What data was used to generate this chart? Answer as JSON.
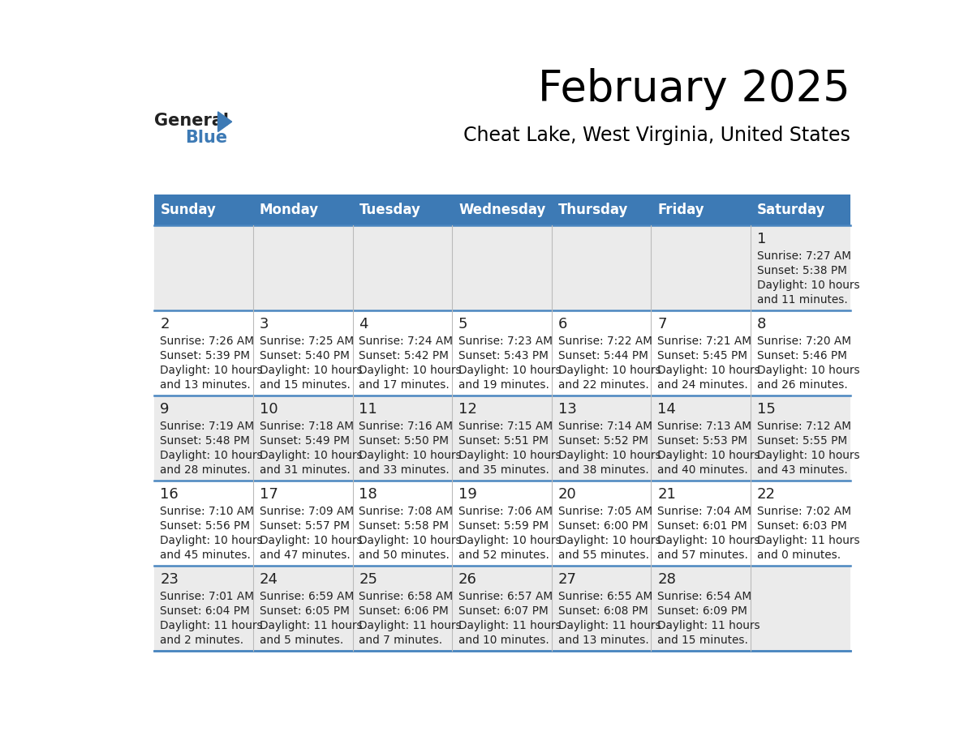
{
  "title": "February 2025",
  "subtitle": "Cheat Lake, West Virginia, United States",
  "header_bg": "#3d7ab5",
  "header_text": "#ffffff",
  "day_names": [
    "Sunday",
    "Monday",
    "Tuesday",
    "Wednesday",
    "Thursday",
    "Friday",
    "Saturday"
  ],
  "row1_bg": "#ebebeb",
  "row2_bg": "#ffffff",
  "cell_border": "#4a86c0",
  "day_num_color": "#222222",
  "info_text_color": "#222222",
  "logo_general_color": "#222222",
  "logo_blue_color": "#3d7ab5",
  "days": [
    {
      "date": 1,
      "col": 6,
      "row": 0,
      "sunrise": "7:27 AM",
      "sunset": "5:38 PM",
      "daylight": "10 hours",
      "daylight2": "and 11 minutes."
    },
    {
      "date": 2,
      "col": 0,
      "row": 1,
      "sunrise": "7:26 AM",
      "sunset": "5:39 PM",
      "daylight": "10 hours",
      "daylight2": "and 13 minutes."
    },
    {
      "date": 3,
      "col": 1,
      "row": 1,
      "sunrise": "7:25 AM",
      "sunset": "5:40 PM",
      "daylight": "10 hours",
      "daylight2": "and 15 minutes."
    },
    {
      "date": 4,
      "col": 2,
      "row": 1,
      "sunrise": "7:24 AM",
      "sunset": "5:42 PM",
      "daylight": "10 hours",
      "daylight2": "and 17 minutes."
    },
    {
      "date": 5,
      "col": 3,
      "row": 1,
      "sunrise": "7:23 AM",
      "sunset": "5:43 PM",
      "daylight": "10 hours",
      "daylight2": "and 19 minutes."
    },
    {
      "date": 6,
      "col": 4,
      "row": 1,
      "sunrise": "7:22 AM",
      "sunset": "5:44 PM",
      "daylight": "10 hours",
      "daylight2": "and 22 minutes."
    },
    {
      "date": 7,
      "col": 5,
      "row": 1,
      "sunrise": "7:21 AM",
      "sunset": "5:45 PM",
      "daylight": "10 hours",
      "daylight2": "and 24 minutes."
    },
    {
      "date": 8,
      "col": 6,
      "row": 1,
      "sunrise": "7:20 AM",
      "sunset": "5:46 PM",
      "daylight": "10 hours",
      "daylight2": "and 26 minutes."
    },
    {
      "date": 9,
      "col": 0,
      "row": 2,
      "sunrise": "7:19 AM",
      "sunset": "5:48 PM",
      "daylight": "10 hours",
      "daylight2": "and 28 minutes."
    },
    {
      "date": 10,
      "col": 1,
      "row": 2,
      "sunrise": "7:18 AM",
      "sunset": "5:49 PM",
      "daylight": "10 hours",
      "daylight2": "and 31 minutes."
    },
    {
      "date": 11,
      "col": 2,
      "row": 2,
      "sunrise": "7:16 AM",
      "sunset": "5:50 PM",
      "daylight": "10 hours",
      "daylight2": "and 33 minutes."
    },
    {
      "date": 12,
      "col": 3,
      "row": 2,
      "sunrise": "7:15 AM",
      "sunset": "5:51 PM",
      "daylight": "10 hours",
      "daylight2": "and 35 minutes."
    },
    {
      "date": 13,
      "col": 4,
      "row": 2,
      "sunrise": "7:14 AM",
      "sunset": "5:52 PM",
      "daylight": "10 hours",
      "daylight2": "and 38 minutes."
    },
    {
      "date": 14,
      "col": 5,
      "row": 2,
      "sunrise": "7:13 AM",
      "sunset": "5:53 PM",
      "daylight": "10 hours",
      "daylight2": "and 40 minutes."
    },
    {
      "date": 15,
      "col": 6,
      "row": 2,
      "sunrise": "7:12 AM",
      "sunset": "5:55 PM",
      "daylight": "10 hours",
      "daylight2": "and 43 minutes."
    },
    {
      "date": 16,
      "col": 0,
      "row": 3,
      "sunrise": "7:10 AM",
      "sunset": "5:56 PM",
      "daylight": "10 hours",
      "daylight2": "and 45 minutes."
    },
    {
      "date": 17,
      "col": 1,
      "row": 3,
      "sunrise": "7:09 AM",
      "sunset": "5:57 PM",
      "daylight": "10 hours",
      "daylight2": "and 47 minutes."
    },
    {
      "date": 18,
      "col": 2,
      "row": 3,
      "sunrise": "7:08 AM",
      "sunset": "5:58 PM",
      "daylight": "10 hours",
      "daylight2": "and 50 minutes."
    },
    {
      "date": 19,
      "col": 3,
      "row": 3,
      "sunrise": "7:06 AM",
      "sunset": "5:59 PM",
      "daylight": "10 hours",
      "daylight2": "and 52 minutes."
    },
    {
      "date": 20,
      "col": 4,
      "row": 3,
      "sunrise": "7:05 AM",
      "sunset": "6:00 PM",
      "daylight": "10 hours",
      "daylight2": "and 55 minutes."
    },
    {
      "date": 21,
      "col": 5,
      "row": 3,
      "sunrise": "7:04 AM",
      "sunset": "6:01 PM",
      "daylight": "10 hours",
      "daylight2": "and 57 minutes."
    },
    {
      "date": 22,
      "col": 6,
      "row": 3,
      "sunrise": "7:02 AM",
      "sunset": "6:03 PM",
      "daylight": "11 hours",
      "daylight2": "and 0 minutes."
    },
    {
      "date": 23,
      "col": 0,
      "row": 4,
      "sunrise": "7:01 AM",
      "sunset": "6:04 PM",
      "daylight": "11 hours",
      "daylight2": "and 2 minutes."
    },
    {
      "date": 24,
      "col": 1,
      "row": 4,
      "sunrise": "6:59 AM",
      "sunset": "6:05 PM",
      "daylight": "11 hours",
      "daylight2": "and 5 minutes."
    },
    {
      "date": 25,
      "col": 2,
      "row": 4,
      "sunrise": "6:58 AM",
      "sunset": "6:06 PM",
      "daylight": "11 hours",
      "daylight2": "and 7 minutes."
    },
    {
      "date": 26,
      "col": 3,
      "row": 4,
      "sunrise": "6:57 AM",
      "sunset": "6:07 PM",
      "daylight": "11 hours",
      "daylight2": "and 10 minutes."
    },
    {
      "date": 27,
      "col": 4,
      "row": 4,
      "sunrise": "6:55 AM",
      "sunset": "6:08 PM",
      "daylight": "11 hours",
      "daylight2": "and 13 minutes."
    },
    {
      "date": 28,
      "col": 5,
      "row": 4,
      "sunrise": "6:54 AM",
      "sunset": "6:09 PM",
      "daylight": "11 hours",
      "daylight2": "and 15 minutes."
    }
  ]
}
